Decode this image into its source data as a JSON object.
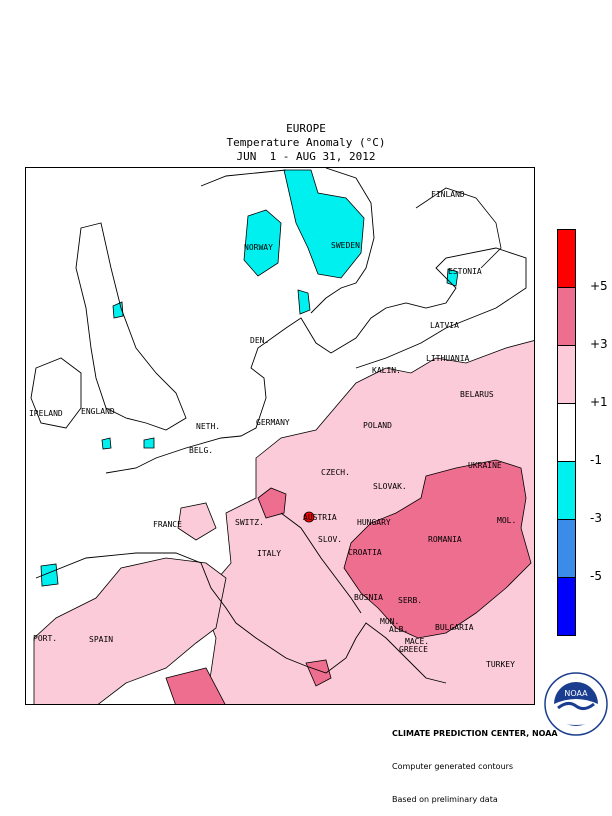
{
  "title": {
    "line1": "EUROPE",
    "line2": "Temperature Anomaly (°C)",
    "line3": "JUN  1 - AUG 31, 2012"
  },
  "map_labels": {
    "finland": "FINLAND",
    "norway": "NORWAY",
    "sweden": "SWEDEN",
    "estonia": "ESTONIA",
    "latvia": "LATVIA",
    "lithuania": "LITHUANIA",
    "den": "DEN.",
    "kalin": "KALIN.",
    "belarus": "BELARUS",
    "ireland": "IRELAND",
    "england": "ENGLAND",
    "neth": "NETH.",
    "germany": "GERMANY",
    "poland": "POLAND",
    "belg": "BELG.",
    "czech": "CZECH.",
    "ukraine": "UKRAINE",
    "slovak": "SLOVAK.",
    "austria": "AUSTRIA",
    "france": "FRANCE",
    "switz": "SWITZ.",
    "hungary": "HUNGARY",
    "mol": "MOL.",
    "romania": "ROMANIA",
    "slov": "SLOV.",
    "croatia": "CROATIA",
    "italy": "ITALY",
    "bosnia": "BOSNIA",
    "serb": "SERB.",
    "mon": "MON.",
    "bulgaria": "BULGARIA",
    "port": "PORT.",
    "spain": "SPAIN",
    "mace": "MACE.",
    "alb": "ALB.",
    "greece": "GREECE",
    "turkey": "TURKEY"
  },
  "legend": {
    "ticks": [
      "+5",
      "+3",
      "+1",
      "-1",
      "-3",
      "-5"
    ],
    "colors": [
      "#ff0000",
      "#ee6e8f",
      "#fccbd9",
      "#ffffff",
      "#00f0f0",
      "#3a8ce8",
      "#0000ff"
    ]
  },
  "credit": {
    "line1": "CLIMATE PREDICTION CENTER, NOAA",
    "line2": "Computer generated contours",
    "line3": "Based on preliminary data"
  },
  "logo": {
    "text": "NOAA",
    "ring_text": "NATIONAL OCEANIC AND ATMOSPHERIC ADMINISTRATION · U.S. DEPARTMENT OF COMMERCE"
  }
}
